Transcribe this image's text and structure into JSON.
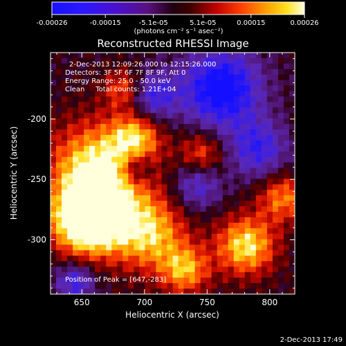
{
  "chart_data": {
    "type": "heatmap",
    "title": "Reconstructed RHESSI Image",
    "xlabel": "Heliocentric X (arcsec)",
    "ylabel": "Heliocentric Y (arcsec)",
    "xlim": [
      625,
      820
    ],
    "ylim": [
      -345,
      -145
    ],
    "x_ticks": [
      650,
      700,
      750,
      800
    ],
    "y_ticks": [
      -200,
      -250,
      -300
    ],
    "colorbar": {
      "ticks": [
        "-0.00026",
        "-0.00015",
        "-5.1e-05",
        "5.1e-05",
        "0.00015",
        "0.00026"
      ],
      "tick_values": [
        -0.00026,
        -0.00015,
        -5.1e-05,
        5.1e-05,
        0.00015,
        0.00026
      ],
      "vmin": -0.00026,
      "vmax": 0.00026,
      "unit_label": "(photons cm⁻² s⁻¹ asec⁻²)"
    },
    "annotations": [
      "2-Dec-2013 12:09:26.000 to 12:15:26.000",
      "Detectors: 3F 5F 6F 7F 8F 9F, Att 0",
      "Energy Range: 25.0 - 50.0 keV",
      "Clean     Total counts: 1.21E+04"
    ],
    "peak_label": "Position of Peak = [647,-283]",
    "grid": false
  },
  "footer": {
    "timestamp": "2-Dec-2013 17:49"
  }
}
